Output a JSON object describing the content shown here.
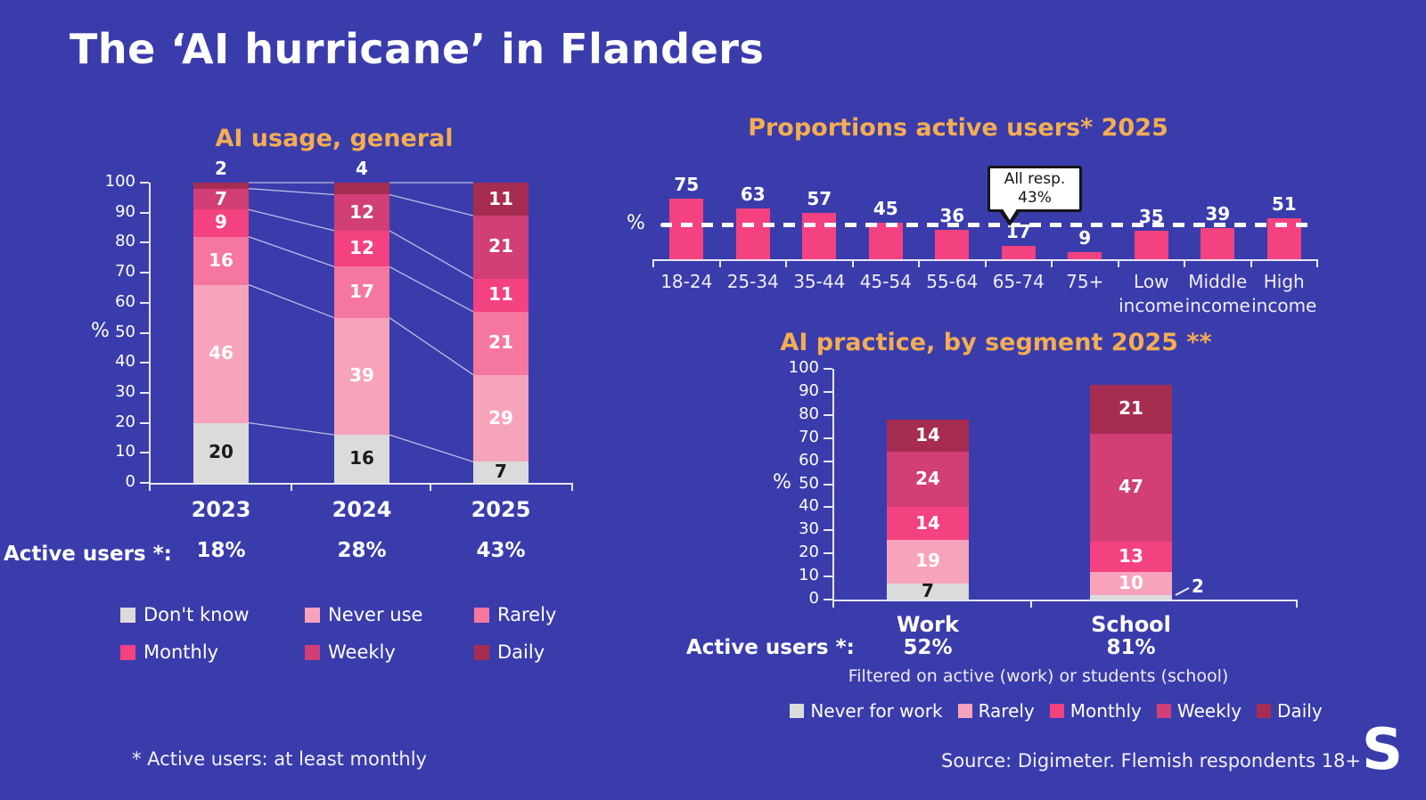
{
  "title": "The ‘AI hurricane’ in Flanders",
  "footnote": "* Active users: at least monthly",
  "source": "Source: Digimeter. Flemish respondents 18+",
  "logo_letter": "S",
  "colors": {
    "background": "#3A3CAC",
    "title_text": "#FFFFFF",
    "accent_orange": "#F3AD52",
    "axis": "#E9E7F4",
    "callout_bg": "#FFFFFF",
    "callout_text": "#151515"
  },
  "chart_data": [
    {
      "id": "ai-usage-general",
      "type": "stacked-bar",
      "title": "AI usage, general",
      "ylabel": "%",
      "ylim": [
        0,
        100
      ],
      "yticks": [
        0,
        10,
        20,
        30,
        40,
        50,
        60,
        70,
        80,
        90,
        100
      ],
      "categories": [
        "2023",
        "2024",
        "2025"
      ],
      "series": [
        {
          "name": "Don't know",
          "color": "#DBDBDB",
          "text_color": "#1a1a1a",
          "values": [
            20,
            16,
            7
          ]
        },
        {
          "name": "Never use",
          "color": "#F8A3BC",
          "values": [
            46,
            39,
            29
          ]
        },
        {
          "name": "Rarely",
          "color": "#F5779F",
          "values": [
            16,
            17,
            21
          ]
        },
        {
          "name": "Monthly",
          "color": "#F4417F",
          "values": [
            9,
            12,
            11
          ]
        },
        {
          "name": "Weekly",
          "color": "#D23E76",
          "values": [
            7,
            12,
            21
          ]
        },
        {
          "name": "Daily",
          "color": "#A72C52",
          "values": [
            2,
            4,
            11
          ]
        }
      ],
      "active_users_label": "Active users *:",
      "active_users": [
        "18%",
        "28%",
        "43%"
      ]
    },
    {
      "id": "proportions-active-users-2025",
      "type": "bar",
      "title": "Proportions active users* 2025",
      "ylabel": "%",
      "bar_color": "#F4417F",
      "categories": [
        "18-24",
        "25-34",
        "35-44",
        "45-54",
        "55-64",
        "65-74",
        "75+",
        "Low income",
        "Middle income",
        "High income"
      ],
      "values": [
        75,
        63,
        57,
        45,
        36,
        17,
        9,
        35,
        39,
        51
      ],
      "annotation": {
        "line1": "All resp.",
        "line2": "43%",
        "value": 43
      }
    },
    {
      "id": "ai-practice-by-segment-2025",
      "type": "stacked-bar",
      "title": "AI practice, by segment 2025 **",
      "ylabel": "%",
      "ylim": [
        0,
        100
      ],
      "yticks": [
        0,
        10,
        20,
        30,
        40,
        50,
        60,
        70,
        80,
        90,
        100
      ],
      "categories": [
        "Work",
        "School"
      ],
      "series": [
        {
          "name": "Never for work",
          "color": "#DBDBDB",
          "text_color": "#1a1a1a",
          "values": [
            7,
            2
          ]
        },
        {
          "name": "Rarely",
          "color": "#F8A3BC",
          "values": [
            19,
            10
          ]
        },
        {
          "name": "Monthly",
          "color": "#F4417F",
          "values": [
            14,
            13
          ]
        },
        {
          "name": "Weekly",
          "color": "#D23E76",
          "values": [
            24,
            47
          ]
        },
        {
          "name": "Daily",
          "color": "#A72C52",
          "values": [
            14,
            21
          ]
        }
      ],
      "active_users_label": "Active users *:",
      "active_users": [
        "52%",
        "81%"
      ],
      "filter_note": "Filtered on active (work) or students (school)"
    }
  ]
}
